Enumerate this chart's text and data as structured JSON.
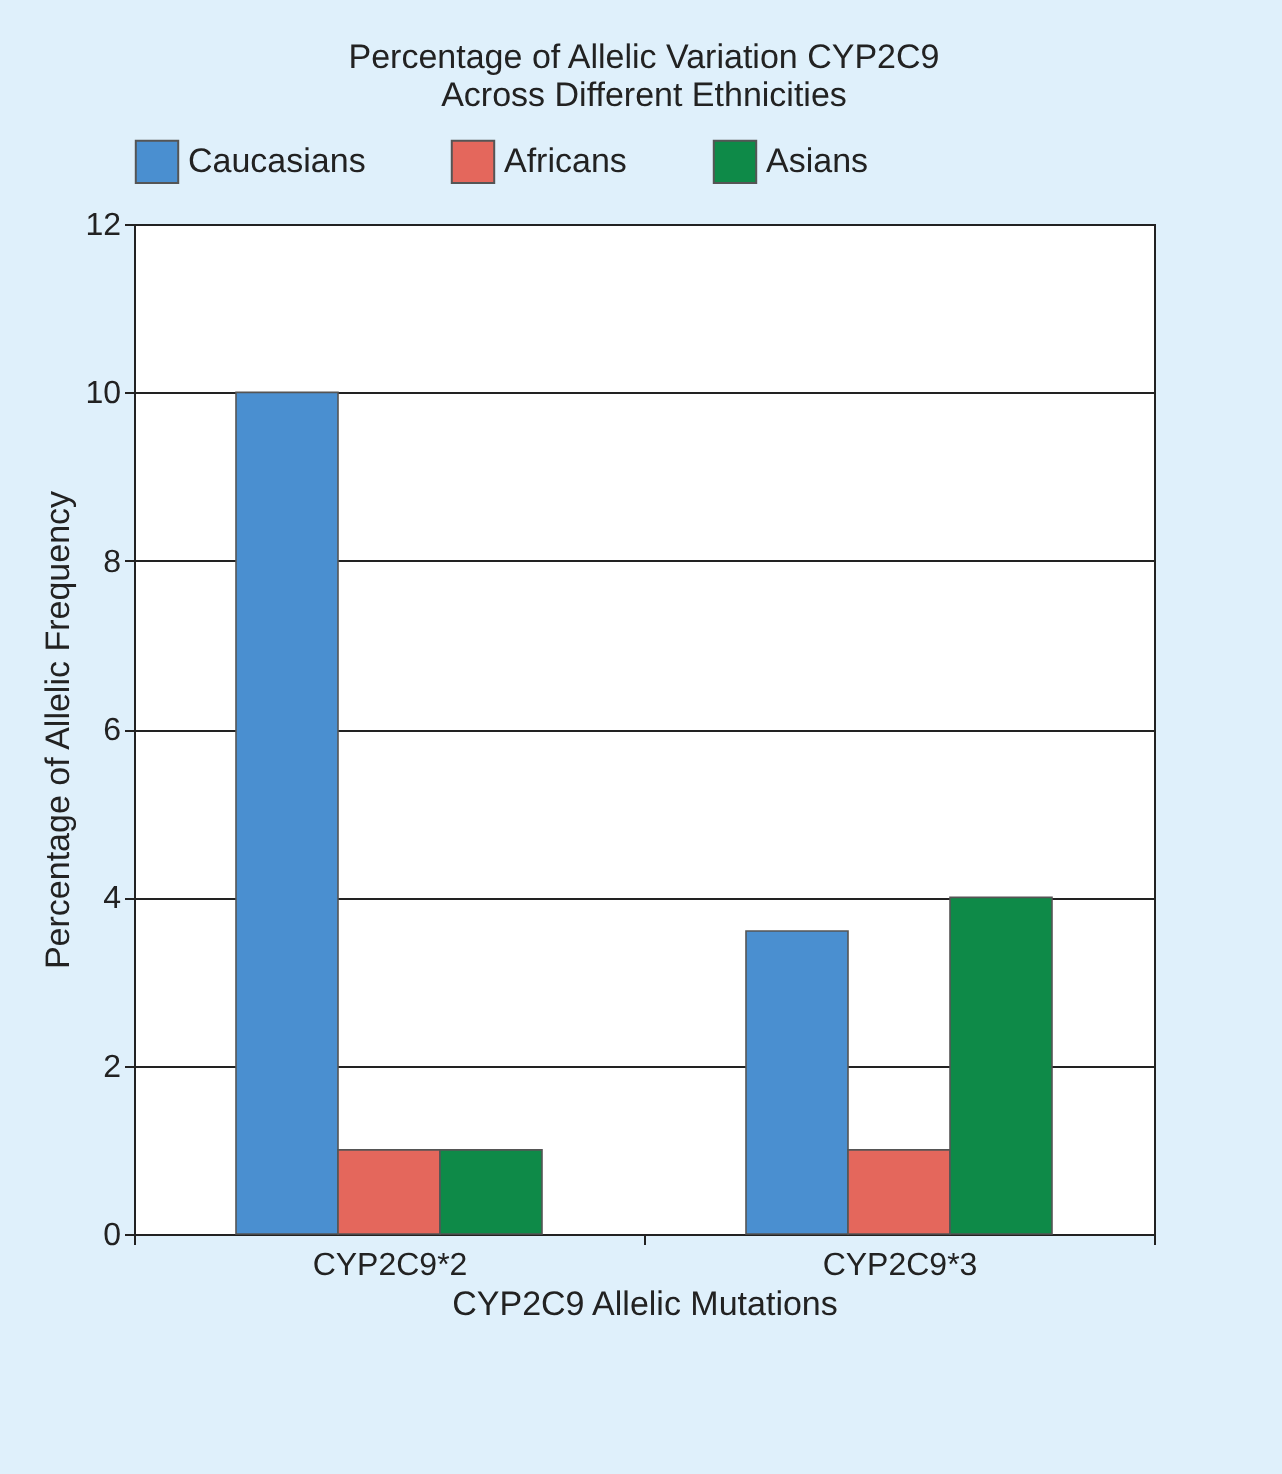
{
  "chart_data": {
    "type": "bar",
    "title": "Percentage of Allelic Variation CYP2C9\nAcross Different Ethnicities",
    "xlabel": "CYP2C9 Allelic Mutations",
    "ylabel": "Percentage of Allelic Frequency",
    "categories": [
      "CYP2C9*2",
      "CYP2C9*3"
    ],
    "series": [
      {
        "name": "Caucasians",
        "color": "#4a8fd0",
        "values": [
          10,
          3.6
        ]
      },
      {
        "name": "Africans",
        "color": "#e4675c",
        "values": [
          1,
          1
        ]
      },
      {
        "name": "Asians",
        "color": "#0e8a48",
        "values": [
          1,
          4
        ]
      }
    ],
    "ylim": [
      0,
      12
    ],
    "yticks": [
      0,
      2,
      4,
      6,
      8,
      10,
      12
    ],
    "grid": "y",
    "legend": "top"
  }
}
